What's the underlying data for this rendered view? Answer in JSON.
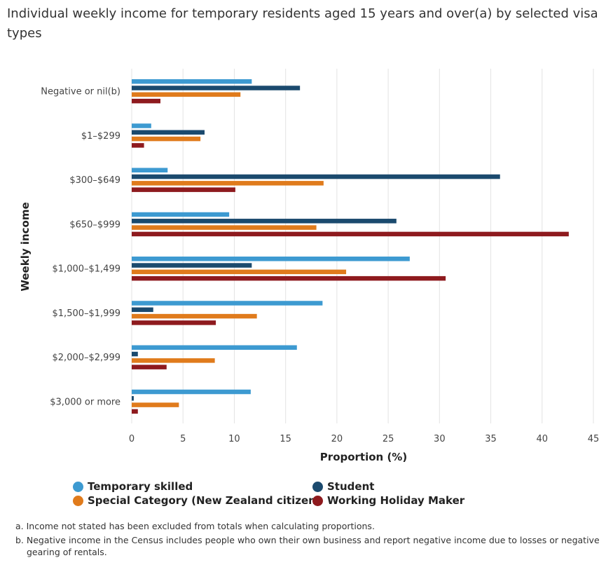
{
  "title": "Individual weekly income for temporary residents aged 15 years and over(a) by selected visa types",
  "colors": {
    "temporary_skilled": "#3d9ad1",
    "student": "#1b4a6e",
    "special_category": "#e07b1c",
    "working_holiday": "#8e1a1e",
    "grid": "#e3e3e3",
    "axis_text": "#444444"
  },
  "chart_data": {
    "type": "bar",
    "orientation": "horizontal",
    "title": "Individual weekly income for temporary residents aged 15 years and over(a) by selected visa types",
    "xlabel": "Proportion (%)",
    "ylabel": "Weekly income",
    "xlim": [
      0,
      45
    ],
    "xticks": [
      "0",
      "5",
      "10",
      "15",
      "20",
      "25",
      "30",
      "35",
      "40",
      "45"
    ],
    "grid": true,
    "legend_position": "bottom",
    "categories": [
      "Negative or nil(b)",
      "$1–$299",
      "$300–$649",
      "$650–$999",
      "$1,000–$1,499",
      "$1,500–$1,999",
      "$2,000–$2,999",
      "$3,000 or more"
    ],
    "series": [
      {
        "name": "Temporary skilled",
        "color_key": "temporary_skilled",
        "values": [
          11.7,
          1.9,
          3.5,
          9.5,
          27.1,
          18.6,
          16.1,
          11.6
        ]
      },
      {
        "name": "Student",
        "color_key": "student",
        "values": [
          16.4,
          7.1,
          35.9,
          25.8,
          11.7,
          2.1,
          0.6,
          0.2
        ]
      },
      {
        "name": "Special Category (New Zealand citizen)",
        "color_key": "special_category",
        "values": [
          10.6,
          6.7,
          18.7,
          18.0,
          20.9,
          12.2,
          8.1,
          4.6
        ]
      },
      {
        "name": "Working Holiday Maker",
        "color_key": "working_holiday",
        "values": [
          2.8,
          1.2,
          10.1,
          42.6,
          30.6,
          8.2,
          3.4,
          0.6
        ]
      }
    ]
  },
  "legend": [
    {
      "label": "Temporary skilled",
      "color_key": "temporary_skilled"
    },
    {
      "label": "Student",
      "color_key": "student"
    },
    {
      "label": "Special Category (New Zealand citizen)",
      "color_key": "special_category"
    },
    {
      "label": "Working Holiday Maker",
      "color_key": "working_holiday"
    }
  ],
  "notes": [
    "a. Income not stated has been excluded from totals when calculating proportions.",
    "b. Negative income in the Census includes people who own their own business and report negative income due to losses or negative gearing of rentals."
  ]
}
